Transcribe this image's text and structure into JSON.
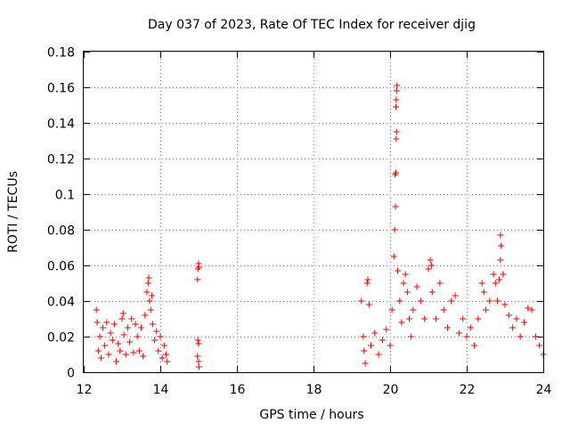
{
  "chart_data": {
    "type": "scatter",
    "title": "Day 037 of 2023, Rate Of TEC Index for receiver djig",
    "xlabel": "GPS time / hours",
    "ylabel": "ROTI / TECUs",
    "xlim": [
      12,
      24
    ],
    "ylim": [
      0,
      0.18
    ],
    "xticks": [
      12,
      14,
      16,
      18,
      20,
      22,
      24
    ],
    "yticks": [
      0,
      0.02,
      0.04,
      0.06,
      0.08,
      0.1,
      0.12,
      0.14,
      0.16,
      0.18
    ],
    "ytick_labels": [
      "0",
      "0.02",
      "0.04",
      "0.06",
      "0.08",
      "0.1",
      "0.12",
      "0.14",
      "0.16",
      "0.18"
    ],
    "grid": true,
    "marker": "+",
    "color": "#ff0000",
    "series": [
      {
        "name": "ROTI",
        "points": [
          [
            12.33,
            0.035
          ],
          [
            12.35,
            0.028
          ],
          [
            12.38,
            0.012
          ],
          [
            12.42,
            0.02
          ],
          [
            12.45,
            0.008
          ],
          [
            12.5,
            0.025
          ],
          [
            12.55,
            0.015
          ],
          [
            12.6,
            0.028
          ],
          [
            12.65,
            0.01
          ],
          [
            12.7,
            0.022
          ],
          [
            12.75,
            0.018
          ],
          [
            12.8,
            0.027
          ],
          [
            12.85,
            0.006
          ],
          [
            12.9,
            0.016
          ],
          [
            12.95,
            0.012
          ],
          [
            13.0,
            0.03
          ],
          [
            13.03,
            0.033
          ],
          [
            13.05,
            0.021
          ],
          [
            13.1,
            0.01
          ],
          [
            13.15,
            0.025
          ],
          [
            13.2,
            0.017
          ],
          [
            13.25,
            0.03
          ],
          [
            13.3,
            0.011
          ],
          [
            13.35,
            0.027
          ],
          [
            13.4,
            0.02
          ],
          [
            13.45,
            0.012
          ],
          [
            13.5,
            0.025
          ],
          [
            13.55,
            0.009
          ],
          [
            13.6,
            0.032
          ],
          [
            13.65,
            0.045
          ],
          [
            13.68,
            0.05
          ],
          [
            13.7,
            0.053
          ],
          [
            13.72,
            0.04
          ],
          [
            13.75,
            0.035
          ],
          [
            13.78,
            0.043
          ],
          [
            13.8,
            0.027
          ],
          [
            13.85,
            0.018
          ],
          [
            13.9,
            0.023
          ],
          [
            13.95,
            0.012
          ],
          [
            14.0,
            0.02
          ],
          [
            14.05,
            0.008
          ],
          [
            14.1,
            0.015
          ],
          [
            14.15,
            0.01
          ],
          [
            14.18,
            0.006
          ],
          [
            14.97,
            0.052
          ],
          [
            14.98,
            0.058
          ],
          [
            15.0,
            0.061
          ],
          [
            15.01,
            0.059
          ],
          [
            14.98,
            0.018
          ],
          [
            15.0,
            0.016
          ],
          [
            14.97,
            0.009
          ],
          [
            15.0,
            0.006
          ],
          [
            15.01,
            0.003
          ],
          [
            19.25,
            0.04
          ],
          [
            19.3,
            0.02
          ],
          [
            19.32,
            0.012
          ],
          [
            19.35,
            0.005
          ],
          [
            19.4,
            0.05
          ],
          [
            19.42,
            0.052
          ],
          [
            19.45,
            0.038
          ],
          [
            19.5,
            0.015
          ],
          [
            19.6,
            0.022
          ],
          [
            19.7,
            0.01
          ],
          [
            19.8,
            0.018
          ],
          [
            19.9,
            0.024
          ],
          [
            20.0,
            0.015
          ],
          [
            20.05,
            0.035
          ],
          [
            20.1,
            0.065
          ],
          [
            20.12,
            0.08
          ],
          [
            20.14,
            0.093
          ],
          [
            20.15,
            0.112
          ],
          [
            20.13,
            0.111
          ],
          [
            20.16,
            0.131
          ],
          [
            20.17,
            0.135
          ],
          [
            20.15,
            0.149
          ],
          [
            20.16,
            0.153
          ],
          [
            20.17,
            0.158
          ],
          [
            20.18,
            0.161
          ],
          [
            20.2,
            0.057
          ],
          [
            20.25,
            0.04
          ],
          [
            20.3,
            0.028
          ],
          [
            20.35,
            0.05
          ],
          [
            20.4,
            0.055
          ],
          [
            20.45,
            0.045
          ],
          [
            20.5,
            0.03
          ],
          [
            20.55,
            0.02
          ],
          [
            20.6,
            0.035
          ],
          [
            20.7,
            0.048
          ],
          [
            20.8,
            0.04
          ],
          [
            20.9,
            0.03
          ],
          [
            21.0,
            0.058
          ],
          [
            21.05,
            0.063
          ],
          [
            21.08,
            0.06
          ],
          [
            21.1,
            0.045
          ],
          [
            21.2,
            0.03
          ],
          [
            21.3,
            0.05
          ],
          [
            21.4,
            0.035
          ],
          [
            21.5,
            0.025
          ],
          [
            21.6,
            0.04
          ],
          [
            21.7,
            0.043
          ],
          [
            21.8,
            0.022
          ],
          [
            21.9,
            0.03
          ],
          [
            22.0,
            0.02
          ],
          [
            22.1,
            0.025
          ],
          [
            22.2,
            0.015
          ],
          [
            22.3,
            0.03
          ],
          [
            22.4,
            0.05
          ],
          [
            22.45,
            0.045
          ],
          [
            22.5,
            0.035
          ],
          [
            22.6,
            0.04
          ],
          [
            22.7,
            0.055
          ],
          [
            22.75,
            0.05
          ],
          [
            22.8,
            0.04
          ],
          [
            22.85,
            0.052
          ],
          [
            22.88,
            0.063
          ],
          [
            22.9,
            0.071
          ],
          [
            22.88,
            0.077
          ],
          [
            22.95,
            0.055
          ],
          [
            23.0,
            0.038
          ],
          [
            23.1,
            0.032
          ],
          [
            23.2,
            0.025
          ],
          [
            23.3,
            0.03
          ],
          [
            23.4,
            0.02
          ],
          [
            23.5,
            0.028
          ],
          [
            23.6,
            0.036
          ],
          [
            23.7,
            0.035
          ],
          [
            23.8,
            0.02
          ],
          [
            23.9,
            0.015
          ],
          [
            24.0,
            0.01
          ]
        ]
      }
    ]
  }
}
